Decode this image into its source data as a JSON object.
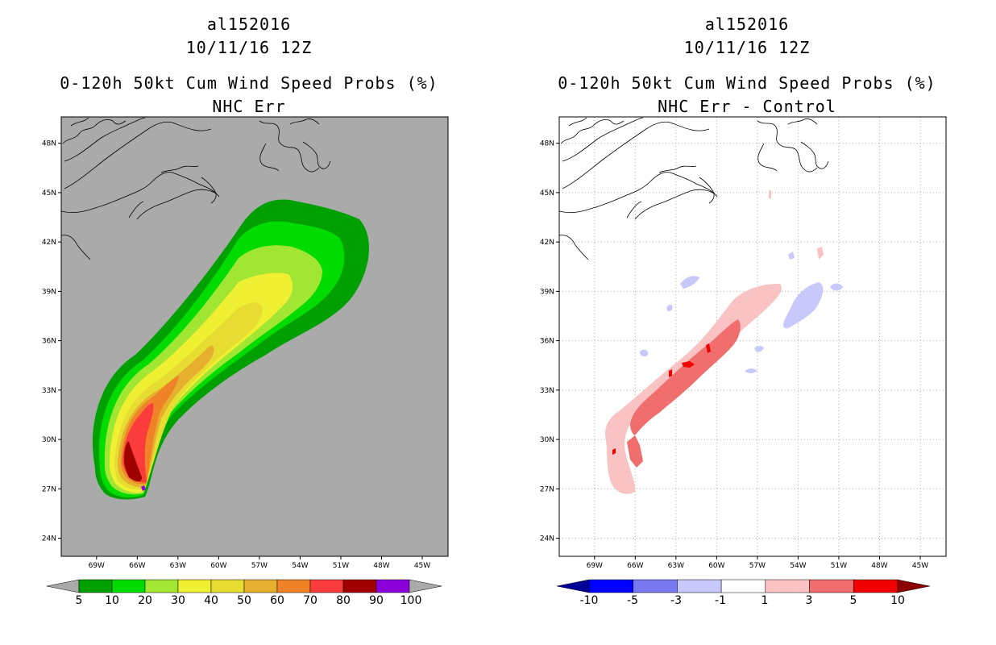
{
  "panels": [
    {
      "storm_id": "al152016",
      "datetime": "10/11/16 12Z",
      "product": "0-120h 50kt Cum Wind Speed Probs (%)",
      "subtitle": "NHC Err",
      "background": "#aaaaaa",
      "grid": false,
      "colorbar": {
        "labels": [
          "5",
          "10",
          "20",
          "30",
          "40",
          "50",
          "60",
          "70",
          "80",
          "90",
          "100"
        ],
        "colors": [
          "#00a000",
          "#00dc00",
          "#a0e632",
          "#f0f032",
          "#e6dc32",
          "#e6af2d",
          "#f08228",
          "#fa3c3c",
          "#a00000",
          "#8c00dc"
        ],
        "under_color": "#aaaaaa",
        "over_color": "#aaaaaa"
      }
    },
    {
      "storm_id": "al152016",
      "datetime": "10/11/16 12Z",
      "product": "0-120h 50kt Cum Wind Speed Probs (%)",
      "subtitle": "NHC Err - Control",
      "background": "#ffffff",
      "grid": true,
      "colorbar": {
        "labels": [
          "-10",
          "-5",
          "-3",
          "-1",
          "1",
          "3",
          "5",
          "10"
        ],
        "colors": [
          "#0000ff",
          "#7878f0",
          "#c8c8fa",
          "#ffffff",
          "#fac3c3",
          "#f06e6e",
          "#f00000"
        ],
        "under_color": "#000096",
        "over_color": "#8c0000"
      }
    }
  ],
  "axes": {
    "lon_labels": [
      "69W",
      "66W",
      "63W",
      "60W",
      "57W",
      "54W",
      "51W",
      "48W",
      "45W"
    ],
    "lat_labels": [
      "24N",
      "27N",
      "30N",
      "33N",
      "36N",
      "39N",
      "42N",
      "45N",
      "48N"
    ],
    "lon_values": [
      -69,
      -66,
      -63,
      -60,
      -57,
      -54,
      -51,
      -48,
      -45
    ],
    "lat_values": [
      24,
      27,
      30,
      33,
      36,
      39,
      42,
      45,
      48
    ],
    "lon_range": [
      -71.6,
      -43.1
    ],
    "lat_range": [
      22.9,
      49.6
    ]
  },
  "colors": {
    "coastline": "#000000",
    "grid": "#aaaaaa"
  }
}
